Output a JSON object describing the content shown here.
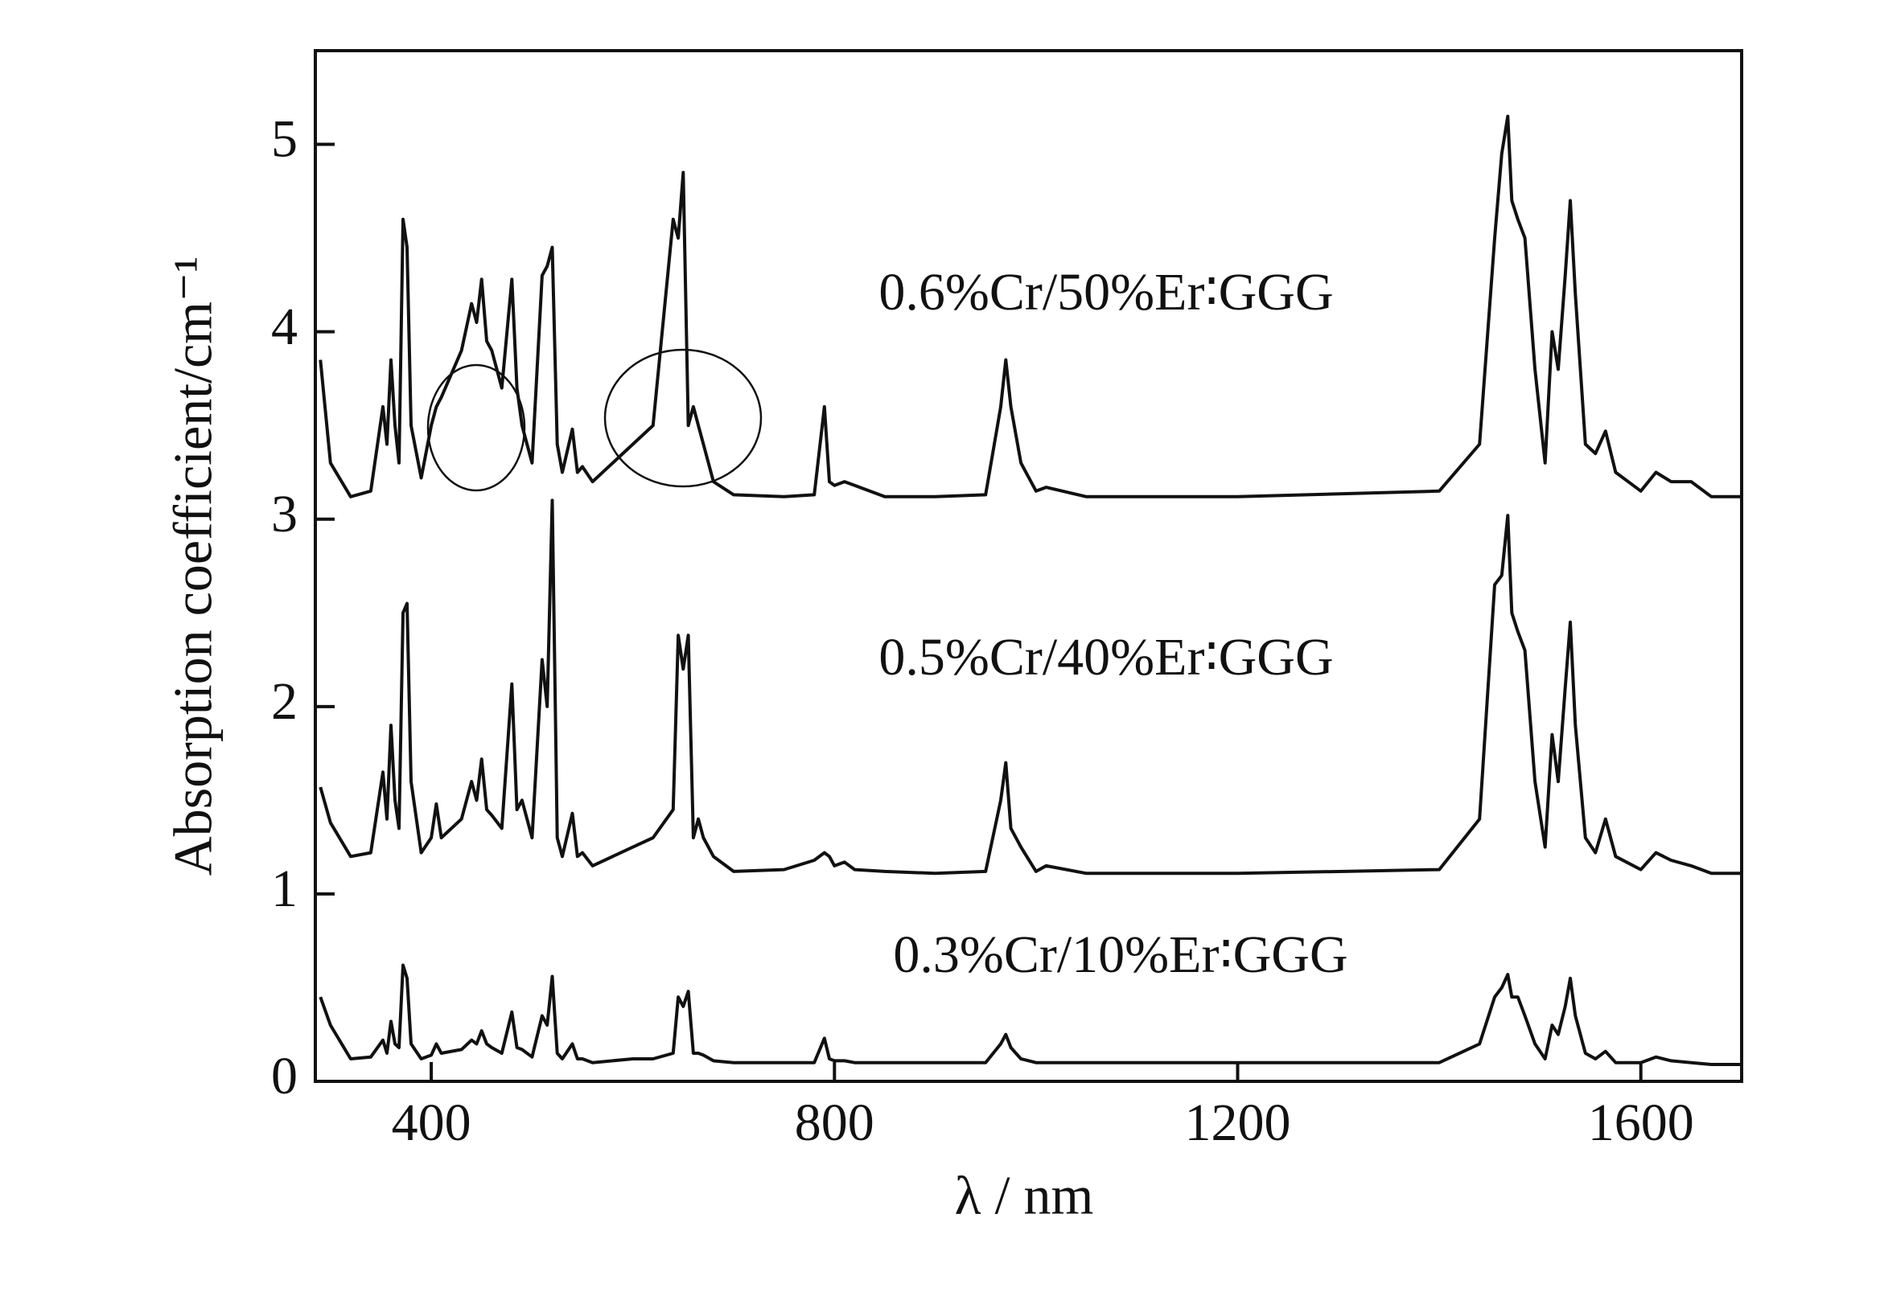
{
  "chart_data": {
    "type": "line",
    "xlabel": "λ / nm",
    "ylabel": "Absorption coefficient/cm⁻¹",
    "x": [
      290,
      300,
      320,
      340,
      352,
      356,
      360,
      364,
      368,
      372,
      376,
      380,
      390,
      400,
      405,
      410,
      430,
      440,
      445,
      450,
      455,
      460,
      470,
      480,
      485,
      490,
      500,
      510,
      515,
      520,
      525,
      530,
      540,
      545,
      550,
      560,
      600,
      620,
      640,
      645,
      650,
      655,
      660,
      665,
      670,
      680,
      700,
      750,
      780,
      790,
      795,
      800,
      810,
      820,
      850,
      900,
      950,
      965,
      970,
      975,
      985,
      1000,
      1010,
      1050,
      1200,
      1400,
      1440,
      1455,
      1462,
      1468,
      1472,
      1478,
      1485,
      1495,
      1505,
      1512,
      1518,
      1525,
      1530,
      1535,
      1545,
      1555,
      1565,
      1575,
      1600,
      1615,
      1630,
      1650,
      1670,
      1700
    ],
    "series": [
      {
        "name": "0.6%Cr/50%Er∶GGG",
        "color": "#111111",
        "values": [
          3.85,
          3.3,
          3.12,
          3.15,
          3.6,
          3.4,
          3.85,
          3.5,
          3.3,
          4.6,
          4.45,
          3.5,
          3.22,
          3.5,
          3.6,
          3.65,
          3.9,
          4.15,
          4.05,
          4.28,
          3.95,
          3.9,
          3.7,
          4.28,
          3.7,
          3.5,
          3.3,
          4.3,
          4.35,
          4.45,
          3.4,
          3.25,
          3.48,
          3.25,
          3.28,
          3.2,
          3.4,
          3.5,
          4.6,
          4.5,
          4.85,
          3.5,
          3.6,
          3.5,
          3.4,
          3.2,
          3.13,
          3.12,
          3.13,
          3.6,
          3.2,
          3.18,
          3.2,
          3.18,
          3.12,
          3.12,
          3.13,
          3.6,
          3.85,
          3.6,
          3.3,
          3.15,
          3.17,
          3.12,
          3.12,
          3.15,
          3.4,
          4.5,
          4.95,
          5.15,
          4.7,
          4.6,
          4.5,
          3.8,
          3.3,
          4.0,
          3.8,
          4.3,
          4.7,
          4.2,
          3.4,
          3.35,
          3.47,
          3.25,
          3.15,
          3.25,
          3.2,
          3.2,
          3.12,
          3.12
        ]
      },
      {
        "name": "0.5%Cr/40%Er∶GGG",
        "color": "#111111",
        "values": [
          1.57,
          1.38,
          1.2,
          1.22,
          1.65,
          1.4,
          1.9,
          1.5,
          1.35,
          2.5,
          2.55,
          1.6,
          1.22,
          1.3,
          1.48,
          1.3,
          1.4,
          1.6,
          1.5,
          1.72,
          1.45,
          1.42,
          1.35,
          2.12,
          1.45,
          1.5,
          1.3,
          2.25,
          2.0,
          3.1,
          1.3,
          1.2,
          1.43,
          1.2,
          1.22,
          1.15,
          1.25,
          1.3,
          1.45,
          2.38,
          2.2,
          2.38,
          1.3,
          1.4,
          1.3,
          1.2,
          1.12,
          1.13,
          1.18,
          1.22,
          1.2,
          1.15,
          1.17,
          1.13,
          1.12,
          1.11,
          1.12,
          1.5,
          1.7,
          1.35,
          1.25,
          1.12,
          1.15,
          1.11,
          1.11,
          1.13,
          1.4,
          2.65,
          2.7,
          3.02,
          2.5,
          2.4,
          2.3,
          1.6,
          1.25,
          1.85,
          1.6,
          2.1,
          2.45,
          1.9,
          1.3,
          1.22,
          1.4,
          1.2,
          1.13,
          1.22,
          1.18,
          1.15,
          1.11,
          1.11
        ]
      },
      {
        "name": "0.3%Cr/10%Er∶GGG",
        "color": "#111111",
        "values": [
          0.45,
          0.3,
          0.12,
          0.13,
          0.22,
          0.15,
          0.32,
          0.2,
          0.18,
          0.62,
          0.55,
          0.2,
          0.12,
          0.14,
          0.2,
          0.15,
          0.17,
          0.22,
          0.2,
          0.27,
          0.2,
          0.18,
          0.15,
          0.37,
          0.18,
          0.17,
          0.13,
          0.35,
          0.3,
          0.56,
          0.15,
          0.12,
          0.2,
          0.12,
          0.12,
          0.1,
          0.12,
          0.12,
          0.15,
          0.45,
          0.4,
          0.48,
          0.15,
          0.15,
          0.14,
          0.11,
          0.1,
          0.1,
          0.1,
          0.23,
          0.12,
          0.11,
          0.11,
          0.1,
          0.1,
          0.1,
          0.1,
          0.2,
          0.25,
          0.18,
          0.12,
          0.1,
          0.1,
          0.1,
          0.1,
          0.1,
          0.2,
          0.45,
          0.5,
          0.57,
          0.45,
          0.45,
          0.35,
          0.2,
          0.12,
          0.3,
          0.25,
          0.4,
          0.55,
          0.35,
          0.15,
          0.12,
          0.16,
          0.1,
          0.1,
          0.13,
          0.11,
          0.1,
          0.09,
          0.09
        ]
      }
    ],
    "xlim": [
      285,
      1700
    ],
    "xticks": [
      400,
      800,
      1200,
      1600
    ],
    "ylim": [
      0,
      5.5
    ],
    "yticks": [
      0,
      1,
      2,
      3,
      4,
      5
    ]
  }
}
